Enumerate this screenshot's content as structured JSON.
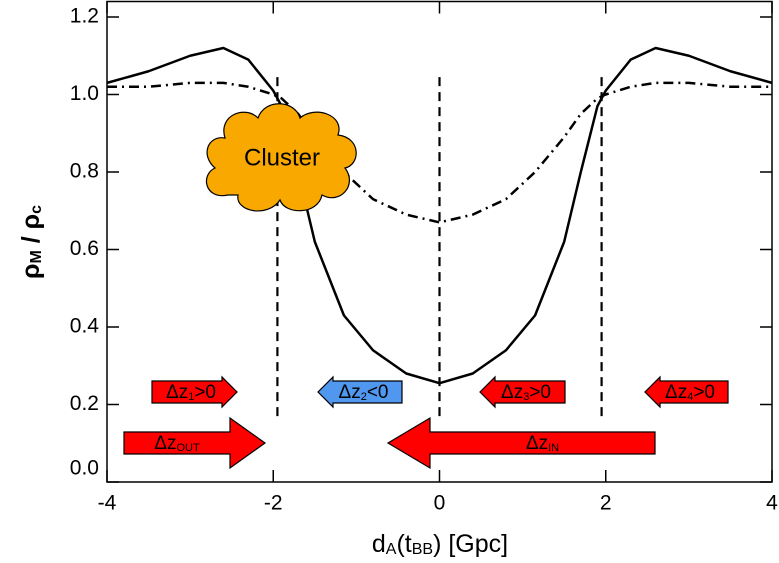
{
  "chart_data": {
    "type": "line",
    "xlabel_parts": [
      "d",
      "A",
      "(t",
      "BB",
      ") [Gpc]"
    ],
    "ylabel_parts": [
      "ρ",
      "M",
      " / ρ",
      "c"
    ],
    "xlim": [
      -4,
      4
    ],
    "xticks": [
      -4,
      -2,
      0,
      2,
      4
    ],
    "ylim": [
      0,
      1.24
    ],
    "yticks": [
      {
        "value": 0,
        "label": "0.0"
      },
      0.2,
      0.4,
      0.6,
      0.8,
      {
        "value": 1,
        "label": "1.0"
      },
      1.2
    ],
    "series": [
      {
        "color": "#000000",
        "dash": "solid",
        "x": [
          -4,
          -3.5,
          -3,
          -2.6,
          -2.3,
          -2,
          -1.9,
          -1.7,
          -1.5,
          -1.15,
          -0.8,
          -0.4,
          0,
          0.4,
          0.8,
          1.15,
          1.5,
          1.7,
          1.9,
          2,
          2.3,
          2.6,
          3,
          3.5,
          4
        ],
        "values": [
          1.03,
          1.06,
          1.1,
          1.12,
          1.09,
          1.01,
          0.97,
          0.8,
          0.62,
          0.43,
          0.34,
          0.28,
          0.255,
          0.28,
          0.34,
          0.43,
          0.62,
          0.8,
          0.97,
          1.01,
          1.09,
          1.12,
          1.1,
          1.06,
          1.03
        ]
      },
      {
        "color": "#000000",
        "dash": "dashdot",
        "x": [
          -4,
          -3.5,
          -3,
          -2.6,
          -2.3,
          -2,
          -1.9,
          -1.7,
          -1.5,
          -1.15,
          -0.8,
          -0.4,
          0,
          0.4,
          0.8,
          1.15,
          1.5,
          1.7,
          1.9,
          2,
          2.3,
          2.6,
          3,
          3.5,
          4
        ],
        "values": [
          1.02,
          1.02,
          1.03,
          1.03,
          1.02,
          1.0,
          0.99,
          0.95,
          0.89,
          0.8,
          0.73,
          0.69,
          0.67,
          0.69,
          0.73,
          0.8,
          0.89,
          0.95,
          0.99,
          1.0,
          1.02,
          1.03,
          1.03,
          1.02,
          1.02
        ]
      }
    ],
    "vlines": [
      -1.95,
      0,
      1.95
    ],
    "vline_range": [
      0.17,
      1.05
    ],
    "cluster_label": "Cluster",
    "arrows": [
      {
        "color": "#ff0000",
        "text": "Δz",
        "sub": "1",
        "rest": ">0"
      },
      {
        "color": "#4f97ef",
        "text": "Δz",
        "sub": "2",
        "rest": "<0"
      },
      {
        "color": "#ff0000",
        "text": "Δz",
        "sub": "3",
        "rest": ">0"
      },
      {
        "color": "#ff0000",
        "text": "Δz",
        "sub": "4",
        "rest": ">0"
      },
      {
        "color": "#ff0000",
        "text": "Δz",
        "sub": "OUT",
        "rest": ""
      },
      {
        "color": "#ff0000",
        "text": "Δz",
        "sub": "IN",
        "rest": ""
      }
    ]
  }
}
